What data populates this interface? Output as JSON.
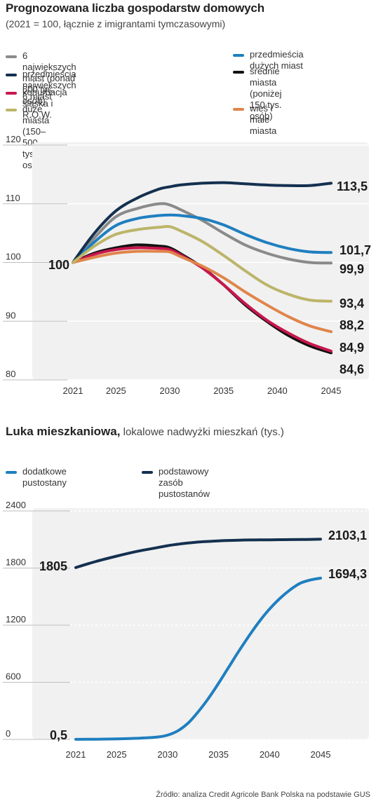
{
  "header": {
    "title": "Prognozowana liczba gospodarstw domowych",
    "subtitle": "(2021 = 100, łącznie z imigrantami tymczasowymi)"
  },
  "chart2_header": {
    "title_bold": "Luka mieszkaniowa,",
    "title_rest": " lokalowe nadwyżki mieszkań (tys.)"
  },
  "source": "Źródło: analiza Credit Agricole Bank Polska na podstawie GUS",
  "chart_data": [
    {
      "type": "line",
      "title": "Prognozowana liczba gospodarstw domowych",
      "subtitle": "(2021 = 100, łącznie z imigrantami tymczasowymi)",
      "x": [
        2021,
        2023,
        2025,
        2027,
        2029,
        2030,
        2031,
        2033,
        2035,
        2037,
        2039,
        2041,
        2043,
        2045
      ],
      "xticks": [
        2021,
        2025,
        2030,
        2035,
        2040,
        2045
      ],
      "yticks": [
        80,
        90,
        100,
        110,
        120
      ],
      "ylim": [
        80,
        120
      ],
      "start_label": "100",
      "grid": true,
      "legend_position": "top",
      "series": [
        {
          "name": "6 największych miast (ponad 500 tys. osób)",
          "color": "#8a8a8a",
          "values": [
            100,
            104.2,
            107.8,
            109.2,
            110.0,
            109.8,
            109.0,
            107.2,
            105.0,
            103.0,
            101.6,
            100.6,
            100.0,
            99.9
          ],
          "end_label": "99,9"
        },
        {
          "name": "przedmieścia dużych miast",
          "color": "#1f7fbf",
          "values": [
            100,
            103.5,
            106.3,
            107.5,
            108.0,
            108.1,
            108.0,
            107.5,
            106.4,
            104.8,
            103.4,
            102.4,
            101.8,
            101.7
          ],
          "end_label": "101,7"
        },
        {
          "name": "przedmieścia największych 6 miast",
          "color": "#14304f",
          "values": [
            100,
            105.0,
            108.8,
            111.0,
            112.5,
            112.9,
            113.2,
            113.5,
            113.6,
            113.4,
            113.2,
            113.1,
            113.1,
            113.5
          ],
          "end_label": "113,5"
        },
        {
          "name": "średnie miasta\n(poniżej 150 tys. osób)",
          "color": "#111111",
          "values": [
            100,
            101.6,
            102.5,
            103.0,
            102.8,
            102.5,
            101.5,
            99.2,
            96.2,
            92.8,
            90.0,
            87.6,
            85.8,
            84.6
          ],
          "end_label": "84,6"
        },
        {
          "name": "konurbacja śląska i R.O.W.",
          "color": "#c8174d",
          "values": [
            100,
            101.4,
            102.2,
            102.5,
            102.4,
            102.2,
            101.3,
            99.1,
            96.2,
            93.0,
            90.2,
            88.0,
            86.2,
            84.9
          ],
          "end_label": "84,9"
        },
        {
          "name": "wieś i małe miasta",
          "color": "#e0854a",
          "values": [
            100,
            100.9,
            101.6,
            101.9,
            101.9,
            101.8,
            101.0,
            99.4,
            97.4,
            95.0,
            92.8,
            90.8,
            89.2,
            88.2
          ],
          "end_label": "88,2"
        },
        {
          "name": "duże miasta (150–500 tys. osób)",
          "color": "#bcb56a",
          "values": [
            100,
            102.8,
            104.8,
            105.6,
            106.0,
            106.1,
            105.4,
            103.6,
            101.2,
            98.6,
            96.2,
            94.6,
            93.6,
            93.4
          ],
          "end_label": "93,4"
        }
      ]
    },
    {
      "type": "line",
      "title": "Luka mieszkaniowa, lokalowe nadwyżki mieszkań (tys.)",
      "x": [
        2021,
        2023,
        2025,
        2027,
        2029,
        2030,
        2031,
        2032,
        2033,
        2034,
        2035,
        2036,
        2037,
        2038,
        2039,
        2040,
        2041,
        2042,
        2043,
        2044,
        2045
      ],
      "xticks": [
        2021,
        2025,
        2030,
        2035,
        2040,
        2045
      ],
      "yticks": [
        0,
        600,
        1200,
        1800,
        2400
      ],
      "ylim": [
        0,
        2400
      ],
      "grid": true,
      "legend_position": "top",
      "series": [
        {
          "name": "dodatkowe pustostany",
          "color": "#1f7fbf",
          "values": [
            0.5,
            2,
            5,
            12,
            25,
            45,
            90,
            170,
            290,
            430,
            590,
            760,
            930,
            1090,
            1240,
            1370,
            1480,
            1570,
            1640,
            1675,
            1694.3
          ],
          "start_label": "0,5",
          "end_label": "1694,3"
        },
        {
          "name": "podstawowy zasób pustostanów",
          "color": "#14304f",
          "values": [
            1805,
            1870,
            1925,
            1975,
            2015,
            2035,
            2050,
            2063,
            2073,
            2080,
            2086,
            2090,
            2093,
            2095,
            2096,
            2097,
            2098,
            2099,
            2100,
            2101,
            2103.1
          ],
          "start_label": "1805",
          "end_label": "2103,1"
        }
      ]
    }
  ]
}
